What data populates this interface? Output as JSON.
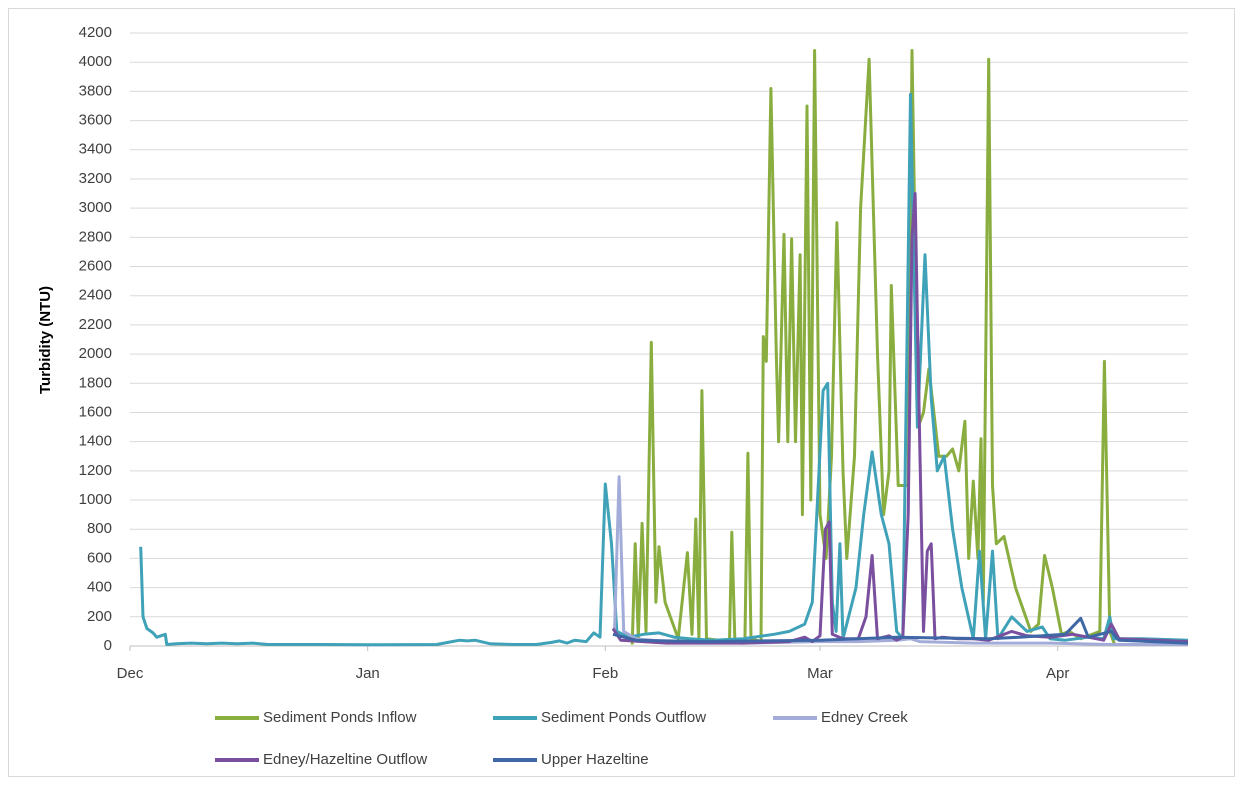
{
  "chart_data": {
    "type": "line",
    "y_label": "Turbidity (NTU)",
    "xlim": [
      0,
      138
    ],
    "xticks": [
      {
        "value": 0,
        "label": "Dec"
      },
      {
        "value": 31,
        "label": "Jan"
      },
      {
        "value": 62,
        "label": "Feb"
      },
      {
        "value": 90,
        "label": "Mar"
      },
      {
        "value": 121,
        "label": "Apr"
      }
    ],
    "ylim": [
      0,
      4200
    ],
    "yticks": [
      0,
      200,
      400,
      600,
      800,
      1000,
      1200,
      1400,
      1600,
      1800,
      2000,
      2200,
      2400,
      2600,
      2800,
      3000,
      3200,
      3400,
      3600,
      3800,
      4000,
      4200
    ],
    "grid": true,
    "legend": "bottom",
    "series": [
      {
        "name": "Sediment Ponds Inflow",
        "color": "#8aad3f",
        "x": [
          65.5,
          65.9,
          66.3,
          66.8,
          67.3,
          68.0,
          68.6,
          69.0,
          69.8,
          71.5,
          72.7,
          73.3,
          73.8,
          74.2,
          74.6,
          75.2,
          78.2,
          78.5,
          78.9,
          80.2,
          80.6,
          81.0,
          82.3,
          82.6,
          83.0,
          83.6,
          84.3,
          84.6,
          85.3,
          85.8,
          86.3,
          86.8,
          87.4,
          87.7,
          88.3,
          88.8,
          89.3,
          90.0,
          90.8,
          91.5,
          92.2,
          93.0,
          93.5,
          94.5,
          95.3,
          96.4,
          97.5,
          98.3,
          99.0,
          99.3,
          100.2,
          101.5,
          102.0,
          102.8,
          103.5,
          104.2,
          105.5,
          106.5,
          107.3,
          108.1,
          108.9,
          109.4,
          110.0,
          110.6,
          111.0,
          111.3,
          112.0,
          112.5,
          113.0,
          114.0,
          115.5,
          117.5,
          118.5,
          119.3,
          120.3,
          121.5,
          122.5,
          124,
          126.5,
          127.1,
          127.8,
          128.5
        ],
        "values": [
          10,
          700,
          50,
          840,
          100,
          2080,
          300,
          680,
          300,
          50,
          640,
          80,
          870,
          50,
          1750,
          50,
          30,
          780,
          30,
          40,
          1320,
          50,
          30,
          2120,
          1950,
          3820,
          2000,
          1400,
          2820,
          1400,
          2790,
          1400,
          2680,
          900,
          3700,
          1000,
          4080,
          900,
          600,
          1300,
          2900,
          1200,
          600,
          1300,
          3000,
          4020,
          2000,
          900,
          1200,
          2470,
          1100,
          1100,
          4080,
          1500,
          1600,
          1900,
          1300,
          1300,
          1350,
          1200,
          1540,
          600,
          1130,
          600,
          1420,
          300,
          4020,
          1100,
          700,
          750,
          400,
          100,
          150,
          620,
          400,
          80,
          100,
          50,
          100,
          1950,
          100,
          0
        ]
      },
      {
        "name": "Sediment Ponds Outflow",
        "color": "#3fa2b8",
        "x": [
          1.4,
          1.7,
          2.2,
          3,
          3.5,
          4.6,
          4.8,
          6,
          8,
          10,
          12,
          14,
          16,
          18,
          25,
          31,
          40,
          42,
          43,
          44,
          45,
          47,
          50,
          53,
          55,
          56,
          57,
          58,
          59.5,
          60.5,
          61.3,
          62,
          62.8,
          63.5,
          65,
          67,
          69,
          71,
          73,
          76,
          80,
          84,
          86,
          88,
          89,
          90.4,
          91,
          91.6,
          92.1,
          92.6,
          93,
          94.7,
          95.7,
          96.8,
          98,
          99,
          100,
          100.8,
          101.8,
          102.7,
          103.7,
          104.5,
          105.3,
          106.2,
          107.3,
          108.5,
          110,
          110.8,
          111.6,
          112.5,
          113.2,
          115,
          116,
          117,
          119,
          120,
          122,
          125,
          127,
          127.8,
          128.3,
          132,
          138
        ],
        "values": [
          680,
          200,
          120,
          90,
          60,
          80,
          10,
          15,
          20,
          15,
          20,
          15,
          20,
          10,
          10,
          8,
          10,
          30,
          40,
          35,
          40,
          15,
          10,
          10,
          25,
          35,
          20,
          40,
          30,
          90,
          60,
          1110,
          700,
          100,
          60,
          80,
          90,
          60,
          50,
          40,
          50,
          80,
          100,
          150,
          300,
          1750,
          1800,
          300,
          100,
          700,
          50,
          400,
          900,
          1330,
          900,
          700,
          100,
          50,
          3780,
          1500,
          2680,
          1700,
          1200,
          1300,
          800,
          400,
          50,
          650,
          50,
          650,
          50,
          200,
          150,
          100,
          130,
          50,
          40,
          60,
          50,
          200,
          50,
          50,
          40
        ]
      },
      {
        "name": "Edney Creek",
        "color": "#a3acd9",
        "x": [
          63.2,
          63.8,
          64.4,
          66,
          70,
          80,
          90,
          95,
          100,
          101.8,
          103,
          110,
          120,
          128,
          138
        ],
        "values": [
          100,
          1160,
          100,
          50,
          30,
          20,
          30,
          30,
          40,
          50,
          30,
          20,
          20,
          10,
          10
        ]
      },
      {
        "name": "Edney/Hazeltine Outflow",
        "color": "#7a4f9f",
        "x": [
          63,
          64,
          70,
          80,
          86,
          88,
          89,
          90,
          90.7,
          91.2,
          91.6,
          93,
          95,
          96,
          96.8,
          97.5,
          99,
          100,
          100.8,
          101.5,
          102,
          102.4,
          103,
          103.5,
          104,
          104.5,
          105,
          106,
          108,
          110,
          112,
          115,
          117,
          120,
          123,
          125,
          127,
          128,
          129,
          138
        ],
        "values": [
          120,
          40,
          20,
          20,
          30,
          60,
          30,
          70,
          800,
          850,
          80,
          50,
          50,
          200,
          620,
          50,
          70,
          40,
          60,
          900,
          2800,
          3100,
          1400,
          100,
          650,
          700,
          50,
          60,
          50,
          50,
          40,
          100,
          70,
          60,
          80,
          60,
          40,
          150,
          50,
          30
        ]
      },
      {
        "name": "Upper Hazeltine",
        "color": "#3f67a6",
        "x": [
          63,
          66,
          75,
          90,
          100,
          112,
          116,
          122,
          124,
          125,
          128,
          129,
          138
        ],
        "values": [
          80,
          40,
          30,
          40,
          60,
          50,
          60,
          80,
          190,
          60,
          100,
          40,
          20
        ]
      }
    ]
  }
}
